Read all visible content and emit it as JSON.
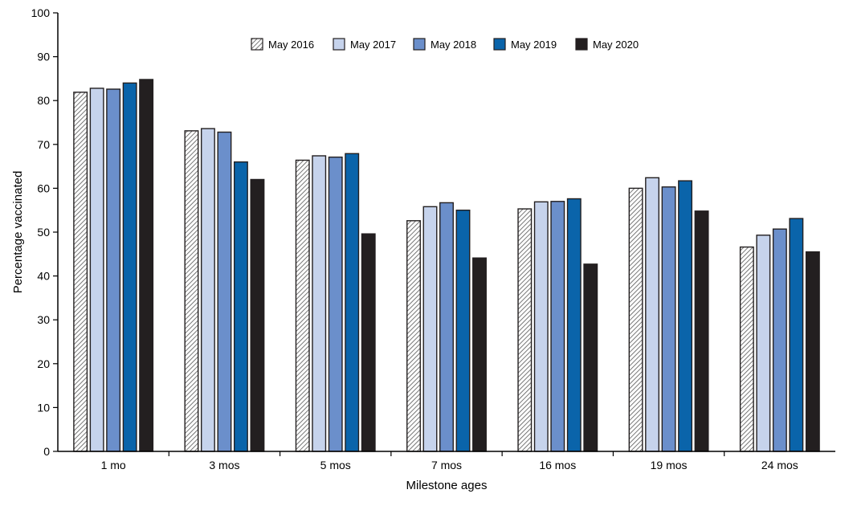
{
  "chart_data": {
    "type": "bar",
    "xlabel": "Milestone ages",
    "ylabel": "Percentage vaccinated",
    "ylim": [
      0,
      100
    ],
    "yticks": [
      0,
      10,
      20,
      30,
      40,
      50,
      60,
      70,
      80,
      90,
      100
    ],
    "grid": false,
    "legend_position": "top",
    "categories": [
      "1 mo",
      "3 mos",
      "5 mos",
      "7 mos",
      "16 mos",
      "19 mos",
      "24 mos"
    ],
    "series": [
      {
        "name": "May 2016",
        "color": "#ffffff",
        "pattern": "diagonal-hatch",
        "values": [
          81.9,
          73.1,
          66.4,
          52.6,
          55.3,
          60.0,
          46.6
        ]
      },
      {
        "name": "May 2017",
        "color": "#c6d3ec",
        "values": [
          82.8,
          73.6,
          67.4,
          55.8,
          56.9,
          62.4,
          49.3
        ]
      },
      {
        "name": "May 2018",
        "color": "#6b8fcb",
        "values": [
          82.6,
          72.8,
          67.1,
          56.7,
          57.0,
          60.3,
          50.7
        ]
      },
      {
        "name": "May 2019",
        "color": "#0a64aa",
        "values": [
          84.0,
          66.0,
          67.9,
          55.0,
          57.6,
          61.7,
          53.1
        ]
      },
      {
        "name": "May 2020",
        "color": "#231f20",
        "values": [
          84.8,
          62.0,
          49.6,
          44.1,
          42.7,
          54.8,
          45.5
        ]
      }
    ]
  }
}
